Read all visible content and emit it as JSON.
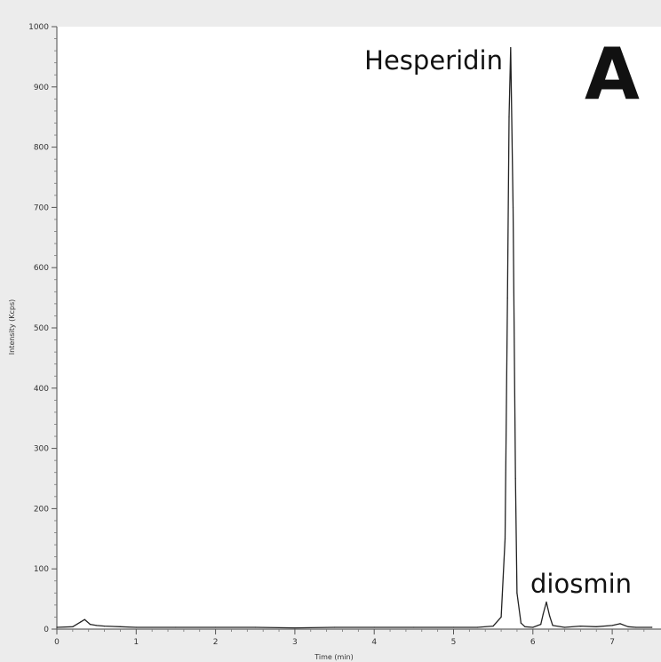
{
  "chart_data": {
    "type": "line",
    "xlabel": "Time (min)",
    "ylabel": "Intensity (Kcps)",
    "xlim": [
      0,
      7.5
    ],
    "ylim": [
      0,
      1000
    ],
    "x_ticks": [
      "0",
      "1",
      "2",
      "3",
      "4",
      "5",
      "6",
      "7"
    ],
    "y_ticks": [
      "0",
      "100",
      "200",
      "300",
      "400",
      "500",
      "600",
      "700",
      "800",
      "900",
      "1000"
    ],
    "panel_label": "A",
    "annotations": [
      {
        "text": "Hesperidin",
        "x": 5.72,
        "y": 965
      },
      {
        "text": "diosmin",
        "x": 6.17,
        "y": 45
      }
    ],
    "series": [
      {
        "x": [
          0,
          0.2,
          0.3,
          0.35,
          0.42,
          0.5,
          0.6,
          0.8,
          1.0,
          1.5,
          2.0,
          2.5,
          3.0,
          3.5,
          4.0,
          4.5,
          5.0,
          5.3,
          5.5,
          5.6,
          5.65,
          5.68,
          5.7,
          5.72,
          5.75,
          5.78,
          5.8,
          5.85,
          5.9,
          6.0,
          6.1,
          6.13,
          6.17,
          6.21,
          6.25,
          6.4,
          6.6,
          6.8,
          7.0,
          7.1,
          7.2,
          7.3,
          7.5
        ],
        "y": [
          3,
          4,
          12,
          16,
          8,
          6,
          5,
          4,
          3,
          3,
          3,
          3,
          2,
          3,
          3,
          3,
          3,
          3,
          5,
          20,
          150,
          550,
          850,
          965,
          700,
          250,
          60,
          10,
          4,
          3,
          8,
          25,
          45,
          22,
          6,
          3,
          5,
          4,
          6,
          9,
          4,
          3,
          3
        ]
      }
    ]
  }
}
